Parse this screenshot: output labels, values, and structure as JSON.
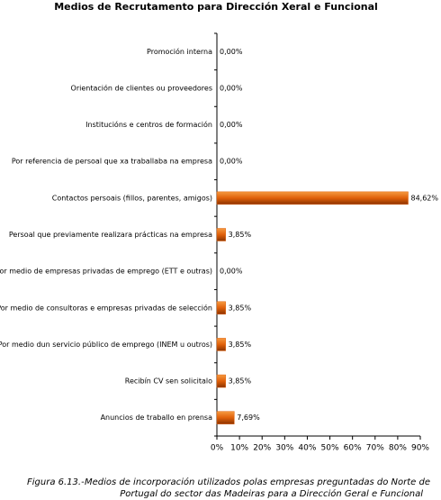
{
  "chart_data": {
    "type": "barh",
    "title": "Medios de Recrutamento para Dirección Xeral e Funcional",
    "categories": [
      "Promoción interna",
      "Orientación de clientes ou proveedores",
      "Institucións e centros de formación",
      "Por referencia de persoal que xa traballaba na empresa",
      "Contactos persoais (fillos, parentes, amigos)",
      "Persoal que previamente realizara prácticas na empresa",
      "Por medio de empresas privadas de emprego (ETT e outras)",
      "Por medio  de consultoras e empresas privadas de selección",
      "Por medio dun servicio público de emprego (INEM u outros)",
      "Recibín CV sen solicitalo",
      "Anuncios de traballo en prensa"
    ],
    "values": [
      0,
      0,
      0,
      0,
      84.62,
      3.85,
      0,
      3.85,
      3.85,
      3.85,
      7.69
    ],
    "value_labels": [
      "0,00%",
      "0,00%",
      "0,00%",
      "0,00%",
      "84,62%",
      "3,85%",
      "0,00%",
      "3,85%",
      "3,85%",
      "3,85%",
      "7,69%"
    ],
    "color": "#e0600a",
    "xlim": [
      0,
      90
    ],
    "xticks": [
      {
        "value": 0,
        "label": "0%"
      },
      {
        "value": 10,
        "label": "10%"
      },
      {
        "value": 20,
        "label": "20%"
      },
      {
        "value": 30,
        "label": "30%"
      },
      {
        "value": 40,
        "label": "40%"
      },
      {
        "value": 50,
        "label": "50%"
      },
      {
        "value": 60,
        "label": "60%"
      },
      {
        "value": 70,
        "label": "70%"
      },
      {
        "value": 80,
        "label": "80%"
      },
      {
        "value": 90,
        "label": "90%"
      }
    ],
    "caption": {
      "label": "Figura 6.13.-",
      "lines": [
        "Medios de incorporación utilizados polas empresas preguntadas do Norte de",
        "Portugal do sector das Madeiras para a Dirección Geral e Funcional"
      ]
    }
  }
}
